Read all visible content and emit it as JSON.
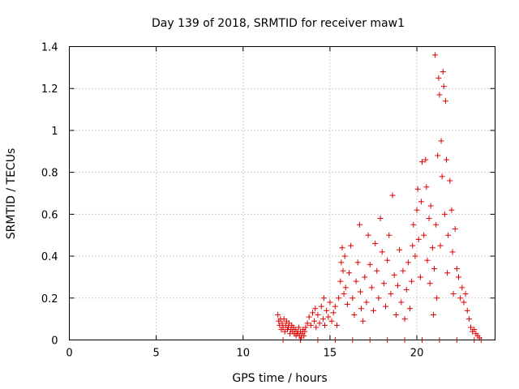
{
  "chart_data": {
    "type": "scatter",
    "title": "Day 139 of 2018, SRMTID for receiver maw1",
    "xlabel": "GPS time / hours",
    "ylabel": "SRMTID / TECUs",
    "xlim": [
      0,
      24.5
    ],
    "ylim": [
      0,
      1.4
    ],
    "xticks": [
      0,
      5,
      10,
      15,
      20
    ],
    "yticks": [
      0,
      0.2,
      0.4,
      0.6,
      0.8,
      1.0,
      1.2,
      1.4
    ],
    "xtick_labels": [
      "0",
      "5",
      "10",
      "15",
      "20"
    ],
    "ytick_labels": [
      "0",
      "0.2",
      "0.4",
      "0.6",
      "0.8",
      "1",
      "1.2",
      "1.4"
    ],
    "grid": true,
    "marker": "+",
    "series": [
      {
        "name": "maw1",
        "color": "#dd0000",
        "points": [
          [
            12.0,
            0.12
          ],
          [
            12.05,
            0.09
          ],
          [
            12.1,
            0.07
          ],
          [
            12.15,
            0.1
          ],
          [
            12.2,
            0.05
          ],
          [
            12.25,
            0.08
          ],
          [
            12.3,
            0.06
          ],
          [
            12.35,
            0.1
          ],
          [
            12.4,
            0.04
          ],
          [
            12.45,
            0.07
          ],
          [
            12.5,
            0.09
          ],
          [
            12.55,
            0.05
          ],
          [
            12.6,
            0.06
          ],
          [
            12.65,
            0.08
          ],
          [
            12.7,
            0.03
          ],
          [
            12.75,
            0.05
          ],
          [
            12.8,
            0.07
          ],
          [
            12.85,
            0.04
          ],
          [
            12.9,
            0.06
          ],
          [
            12.95,
            0.03
          ],
          [
            13.0,
            0.05
          ],
          [
            13.05,
            0.02
          ],
          [
            13.1,
            0.04
          ],
          [
            13.15,
            0.03
          ],
          [
            13.2,
            0.06
          ],
          [
            13.25,
            0.02
          ],
          [
            13.3,
            0.04
          ],
          [
            13.35,
            0.01
          ],
          [
            13.4,
            0.03
          ],
          [
            13.45,
            0.05
          ],
          [
            13.5,
            0.02
          ],
          [
            13.55,
            0.04
          ],
          [
            13.6,
            0.06
          ],
          [
            13.7,
            0.08
          ],
          [
            13.8,
            0.11
          ],
          [
            13.9,
            0.07
          ],
          [
            14.0,
            0.13
          ],
          [
            14.1,
            0.09
          ],
          [
            14.15,
            0.15
          ],
          [
            14.2,
            0.06
          ],
          [
            14.3,
            0.12
          ],
          [
            14.4,
            0.08
          ],
          [
            14.5,
            0.16
          ],
          [
            14.6,
            0.1
          ],
          [
            14.65,
            0.2
          ],
          [
            14.7,
            0.07
          ],
          [
            14.8,
            0.14
          ],
          [
            14.9,
            0.11
          ],
          [
            15.0,
            0.18
          ],
          [
            15.1,
            0.09
          ],
          [
            15.2,
            0.13
          ],
          [
            15.3,
            0.16
          ],
          [
            15.4,
            0.07
          ],
          [
            15.5,
            0.2
          ],
          [
            15.6,
            0.28
          ],
          [
            15.65,
            0.37
          ],
          [
            15.7,
            0.44
          ],
          [
            15.75,
            0.33
          ],
          [
            15.8,
            0.22
          ],
          [
            15.85,
            0.4
          ],
          [
            15.9,
            0.25
          ],
          [
            16.0,
            0.17
          ],
          [
            16.1,
            0.32
          ],
          [
            16.2,
            0.45
          ],
          [
            16.3,
            0.2
          ],
          [
            16.4,
            0.12
          ],
          [
            16.5,
            0.28
          ],
          [
            16.6,
            0.37
          ],
          [
            16.7,
            0.55
          ],
          [
            16.75,
            0.23
          ],
          [
            16.8,
            0.15
          ],
          [
            16.9,
            0.09
          ],
          [
            17.0,
            0.3
          ],
          [
            17.1,
            0.18
          ],
          [
            17.2,
            0.5
          ],
          [
            17.3,
            0.36
          ],
          [
            17.4,
            0.25
          ],
          [
            17.5,
            0.14
          ],
          [
            17.6,
            0.46
          ],
          [
            17.7,
            0.33
          ],
          [
            17.8,
            0.2
          ],
          [
            17.9,
            0.58
          ],
          [
            18.0,
            0.42
          ],
          [
            18.1,
            0.27
          ],
          [
            18.2,
            0.16
          ],
          [
            18.3,
            0.38
          ],
          [
            18.4,
            0.5
          ],
          [
            18.5,
            0.22
          ],
          [
            18.6,
            0.69
          ],
          [
            18.7,
            0.31
          ],
          [
            18.8,
            0.12
          ],
          [
            18.9,
            0.26
          ],
          [
            19.0,
            0.43
          ],
          [
            19.1,
            0.18
          ],
          [
            19.2,
            0.33
          ],
          [
            19.3,
            0.1
          ],
          [
            19.4,
            0.24
          ],
          [
            19.5,
            0.37
          ],
          [
            19.6,
            0.15
          ],
          [
            19.7,
            0.28
          ],
          [
            19.75,
            0.45
          ],
          [
            19.8,
            0.55
          ],
          [
            19.9,
            0.4
          ],
          [
            20.0,
            0.62
          ],
          [
            20.05,
            0.72
          ],
          [
            20.1,
            0.48
          ],
          [
            20.2,
            0.3
          ],
          [
            20.25,
            0.66
          ],
          [
            20.3,
            0.85
          ],
          [
            20.4,
            0.5
          ],
          [
            20.5,
            0.86
          ],
          [
            20.55,
            0.73
          ],
          [
            20.6,
            0.38
          ],
          [
            20.7,
            0.58
          ],
          [
            20.75,
            0.27
          ],
          [
            20.8,
            0.64
          ],
          [
            20.9,
            0.44
          ],
          [
            20.95,
            0.12
          ],
          [
            21.0,
            0.34
          ],
          [
            21.05,
            1.36
          ],
          [
            21.1,
            0.55
          ],
          [
            21.15,
            0.2
          ],
          [
            21.2,
            0.88
          ],
          [
            21.25,
            1.25
          ],
          [
            21.3,
            1.17
          ],
          [
            21.35,
            0.45
          ],
          [
            21.4,
            0.95
          ],
          [
            21.45,
            0.78
          ],
          [
            21.5,
            1.28
          ],
          [
            21.55,
            1.21
          ],
          [
            21.6,
            0.6
          ],
          [
            21.65,
            1.14
          ],
          [
            21.7,
            0.86
          ],
          [
            21.75,
            0.32
          ],
          [
            21.8,
            0.5
          ],
          [
            21.9,
            0.76
          ],
          [
            22.0,
            0.62
          ],
          [
            22.05,
            0.42
          ],
          [
            22.1,
            0.22
          ],
          [
            22.2,
            0.53
          ],
          [
            22.3,
            0.34
          ],
          [
            22.4,
            0.3
          ],
          [
            22.5,
            0.2
          ],
          [
            22.6,
            0.25
          ],
          [
            22.7,
            0.18
          ],
          [
            22.8,
            0.22
          ],
          [
            22.9,
            0.14
          ],
          [
            23.0,
            0.1
          ],
          [
            23.1,
            0.06
          ],
          [
            23.2,
            0.04
          ],
          [
            23.3,
            0.05
          ],
          [
            23.4,
            0.03
          ],
          [
            23.5,
            0.02
          ],
          [
            23.6,
            0.01
          ],
          [
            23.7,
            0.0
          ],
          [
            12.3,
            0.0
          ],
          [
            13.3,
            0.0
          ],
          [
            14.3,
            0.0
          ],
          [
            15.3,
            0.0
          ],
          [
            16.3,
            0.0
          ],
          [
            17.3,
            0.0
          ],
          [
            18.3,
            0.0
          ],
          [
            19.3,
            0.0
          ],
          [
            20.3,
            0.0
          ],
          [
            21.3,
            0.0
          ],
          [
            22.3,
            0.0
          ],
          [
            23.3,
            0.0
          ]
        ]
      }
    ]
  }
}
